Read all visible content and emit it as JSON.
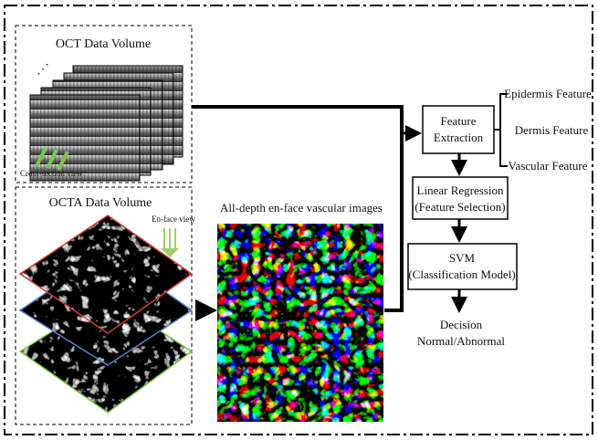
{
  "oct": {
    "title": "OCT Data Volume",
    "label": "Cross-section view"
  },
  "octa": {
    "title": "OCTA Data Volume",
    "label": "En-face view"
  },
  "enface": {
    "title": "All-depth en-face vascular images"
  },
  "steps": [
    {
      "lines": [
        "Feature",
        "Extraction"
      ]
    },
    {
      "lines": [
        "Linear Regression",
        "(Feature Selection)"
      ]
    },
    {
      "lines": [
        "SVM",
        "(Classification Model)"
      ]
    }
  ],
  "decision": {
    "lines": [
      "Decision",
      "Normal/Abnormal"
    ]
  },
  "features": [
    "Epidermis Feature",
    "Dermis Feature",
    "Vascular Feature"
  ]
}
